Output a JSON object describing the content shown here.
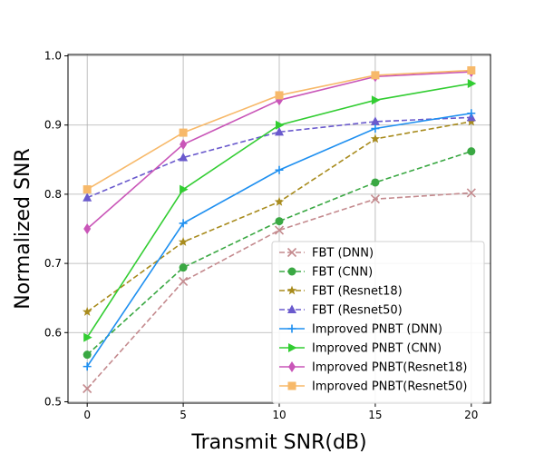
{
  "chart_data": {
    "type": "line",
    "title": "",
    "xlabel": "Transmit SNR(dB)",
    "ylabel": "Normalized SNR",
    "x": [
      0,
      5,
      10,
      15,
      20
    ],
    "xlim": [
      -1,
      21
    ],
    "ylim": [
      0.498,
      1.002
    ],
    "xticks": [
      "0",
      "5",
      "10",
      "15",
      "20"
    ],
    "yticks": [
      "0.5",
      "0.6",
      "0.7",
      "0.8",
      "0.9",
      "1.0"
    ],
    "grid": true,
    "legend_position": "lower-right",
    "series": [
      {
        "name": "FBT (DNN)",
        "values": [
          0.519,
          0.674,
          0.748,
          0.793,
          0.802
        ],
        "color": "#c48a8e",
        "dash": "dashed",
        "marker": "x"
      },
      {
        "name": "FBT (CNN)",
        "values": [
          0.568,
          0.694,
          0.761,
          0.817,
          0.862
        ],
        "color": "#3aa843",
        "dash": "dashed",
        "marker": "circle"
      },
      {
        "name": "FBT (Resnet18)",
        "values": [
          0.63,
          0.731,
          0.789,
          0.88,
          0.905
        ],
        "color": "#a88b1d",
        "dash": "dashed",
        "marker": "star"
      },
      {
        "name": "FBT (Resnet50)",
        "values": [
          0.795,
          0.853,
          0.89,
          0.905,
          0.911
        ],
        "color": "#6a5acd",
        "dash": "dashed",
        "marker": "triangle-up"
      },
      {
        "name": "Improved PNBT (DNN)",
        "values": [
          0.551,
          0.758,
          0.835,
          0.895,
          0.917
        ],
        "color": "#1e8ff0",
        "dash": "solid",
        "marker": "plus"
      },
      {
        "name": "Improved PNBT (CNN)",
        "values": [
          0.593,
          0.807,
          0.9,
          0.936,
          0.96
        ],
        "color": "#32cd32",
        "dash": "solid",
        "marker": "triangle-right"
      },
      {
        "name": "Improved PNBT(Resnet18)",
        "values": [
          0.75,
          0.872,
          0.936,
          0.97,
          0.977
        ],
        "color": "#c956b8",
        "dash": "solid",
        "marker": "diamond"
      },
      {
        "name": "Improved PNBT(Resnet50)",
        "values": [
          0.807,
          0.889,
          0.943,
          0.972,
          0.979
        ],
        "color": "#f7b96a",
        "dash": "solid",
        "marker": "square"
      }
    ]
  }
}
